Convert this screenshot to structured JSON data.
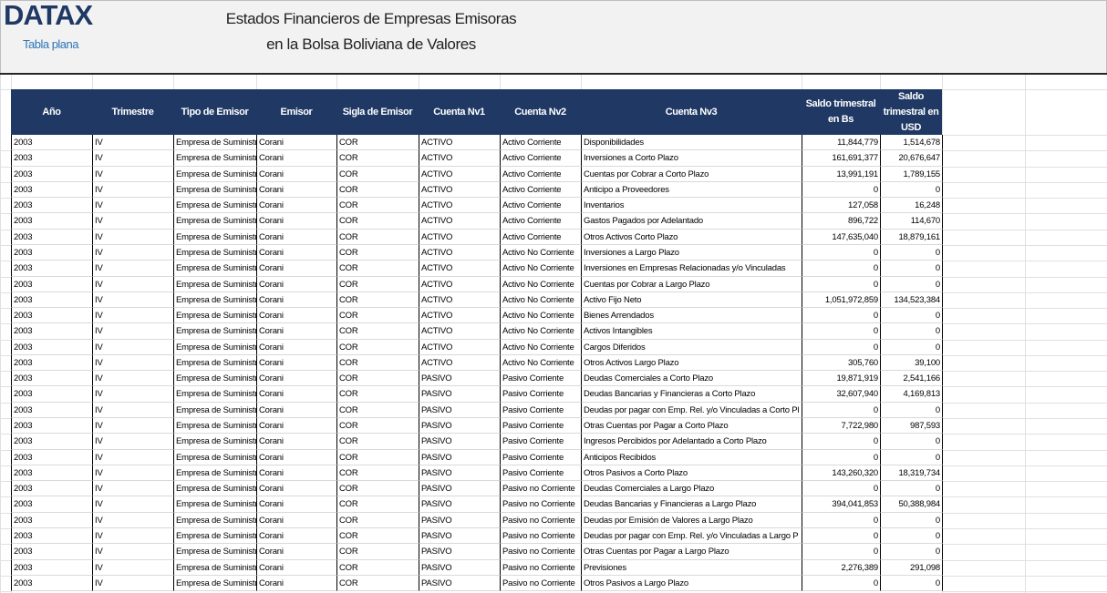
{
  "header": {
    "logo": "DATAX",
    "subtitle": "Tabla plana",
    "title_line1": "Estados Financieros de Empresas Emisoras",
    "title_line2": "en la Bolsa Boliviana de Valores"
  },
  "table": {
    "columns": [
      "Año",
      "Trimestre",
      "Tipo de Emisor",
      "Emisor",
      "Sigla de Emisor",
      "Cuenta Nv1",
      "Cuenta Nv2",
      "Cuenta Nv3",
      "Saldo trimestral en Bs",
      "Saldo trimestral en USD"
    ],
    "rows": [
      [
        "2003",
        "IV",
        "Empresa de Suministr",
        "Corani",
        "COR",
        "ACTIVO",
        "Activo Corriente",
        "Disponibilidades",
        "11,844,779",
        "1,514,678"
      ],
      [
        "2003",
        "IV",
        "Empresa de Suministr",
        "Corani",
        "COR",
        "ACTIVO",
        "Activo Corriente",
        "Inversiones a Corto Plazo",
        "161,691,377",
        "20,676,647"
      ],
      [
        "2003",
        "IV",
        "Empresa de Suministr",
        "Corani",
        "COR",
        "ACTIVO",
        "Activo Corriente",
        "Cuentas por Cobrar a Corto Plazo",
        "13,991,191",
        "1,789,155"
      ],
      [
        "2003",
        "IV",
        "Empresa de Suministr",
        "Corani",
        "COR",
        "ACTIVO",
        "Activo Corriente",
        "Anticipo a Proveedores",
        "0",
        "0"
      ],
      [
        "2003",
        "IV",
        "Empresa de Suministr",
        "Corani",
        "COR",
        "ACTIVO",
        "Activo Corriente",
        "Inventarios",
        "127,058",
        "16,248"
      ],
      [
        "2003",
        "IV",
        "Empresa de Suministr",
        "Corani",
        "COR",
        "ACTIVO",
        "Activo Corriente",
        "Gastos Pagados por Adelantado",
        "896,722",
        "114,670"
      ],
      [
        "2003",
        "IV",
        "Empresa de Suministr",
        "Corani",
        "COR",
        "ACTIVO",
        "Activo Corriente",
        "Otros Activos Corto Plazo",
        "147,635,040",
        "18,879,161"
      ],
      [
        "2003",
        "IV",
        "Empresa de Suministr",
        "Corani",
        "COR",
        "ACTIVO",
        "Activo No Corriente",
        "Inversiones a Largo Plazo",
        "0",
        "0"
      ],
      [
        "2003",
        "IV",
        "Empresa de Suministr",
        "Corani",
        "COR",
        "ACTIVO",
        "Activo No Corriente",
        "Inversiones en Empresas Relacionadas y/o Vinculadas",
        "0",
        "0"
      ],
      [
        "2003",
        "IV",
        "Empresa de Suministr",
        "Corani",
        "COR",
        "ACTIVO",
        "Activo No Corriente",
        "Cuentas por Cobrar a Largo Plazo",
        "0",
        "0"
      ],
      [
        "2003",
        "IV",
        "Empresa de Suministr",
        "Corani",
        "COR",
        "ACTIVO",
        "Activo No Corriente",
        "Activo Fijo Neto",
        "1,051,972,859",
        "134,523,384"
      ],
      [
        "2003",
        "IV",
        "Empresa de Suministr",
        "Corani",
        "COR",
        "ACTIVO",
        "Activo No Corriente",
        "Bienes Arrendados",
        "0",
        "0"
      ],
      [
        "2003",
        "IV",
        "Empresa de Suministr",
        "Corani",
        "COR",
        "ACTIVO",
        "Activo No Corriente",
        "Activos Intangibles",
        "0",
        "0"
      ],
      [
        "2003",
        "IV",
        "Empresa de Suministr",
        "Corani",
        "COR",
        "ACTIVO",
        "Activo No Corriente",
        "Cargos Diferidos",
        "0",
        "0"
      ],
      [
        "2003",
        "IV",
        "Empresa de Suministr",
        "Corani",
        "COR",
        "ACTIVO",
        "Activo No Corriente",
        "Otros Activos Largo Plazo",
        "305,760",
        "39,100"
      ],
      [
        "2003",
        "IV",
        "Empresa de Suministr",
        "Corani",
        "COR",
        "PASIVO",
        "Pasivo Corriente",
        "Deudas Comerciales a Corto Plazo",
        "19,871,919",
        "2,541,166"
      ],
      [
        "2003",
        "IV",
        "Empresa de Suministr",
        "Corani",
        "COR",
        "PASIVO",
        "Pasivo Corriente",
        "Deudas Bancarias y Financieras a Corto Plazo",
        "32,607,940",
        "4,169,813"
      ],
      [
        "2003",
        "IV",
        "Empresa de Suministr",
        "Corani",
        "COR",
        "PASIVO",
        "Pasivo Corriente",
        "Deudas por pagar con Emp. Rel. y/o Vinculadas a Corto Pl",
        "0",
        "0"
      ],
      [
        "2003",
        "IV",
        "Empresa de Suministr",
        "Corani",
        "COR",
        "PASIVO",
        "Pasivo Corriente",
        "Otras Cuentas por Pagar a Corto Plazo",
        "7,722,980",
        "987,593"
      ],
      [
        "2003",
        "IV",
        "Empresa de Suministr",
        "Corani",
        "COR",
        "PASIVO",
        "Pasivo Corriente",
        "Ingresos Percibidos por Adelantado a Corto Plazo",
        "0",
        "0"
      ],
      [
        "2003",
        "IV",
        "Empresa de Suministr",
        "Corani",
        "COR",
        "PASIVO",
        "Pasivo Corriente",
        "Anticipos Recibidos",
        "0",
        "0"
      ],
      [
        "2003",
        "IV",
        "Empresa de Suministr",
        "Corani",
        "COR",
        "PASIVO",
        "Pasivo Corriente",
        "Otros Pasivos a Corto Plazo",
        "143,260,320",
        "18,319,734"
      ],
      [
        "2003",
        "IV",
        "Empresa de Suministr",
        "Corani",
        "COR",
        "PASIVO",
        "Pasivo no Corriente",
        "Deudas Comerciales a Largo Plazo",
        "0",
        "0"
      ],
      [
        "2003",
        "IV",
        "Empresa de Suministr",
        "Corani",
        "COR",
        "PASIVO",
        "Pasivo no Corriente",
        "Deudas Bancarias y Financieras a Largo Plazo",
        "394,041,853",
        "50,388,984"
      ],
      [
        "2003",
        "IV",
        "Empresa de Suministr",
        "Corani",
        "COR",
        "PASIVO",
        "Pasivo no Corriente",
        "Deudas por Emisión de Valores a Largo Plazo",
        "0",
        "0"
      ],
      [
        "2003",
        "IV",
        "Empresa de Suministr",
        "Corani",
        "COR",
        "PASIVO",
        "Pasivo no Corriente",
        "Deudas por pagar con Emp. Rel. y/o Vinculadas a Largo P",
        "0",
        "0"
      ],
      [
        "2003",
        "IV",
        "Empresa de Suministr",
        "Corani",
        "COR",
        "PASIVO",
        "Pasivo no Corriente",
        "Otras Cuentas por Pagar a Largo Plazo",
        "0",
        "0"
      ],
      [
        "2003",
        "IV",
        "Empresa de Suministr",
        "Corani",
        "COR",
        "PASIVO",
        "Pasivo no Corriente",
        "Previsiones",
        "2,276,389",
        "291,098"
      ],
      [
        "2003",
        "IV",
        "Empresa de Suministr",
        "Corani",
        "COR",
        "PASIVO",
        "Pasivo no Corriente",
        "Otros Pasivos a Largo Plazo",
        "0",
        "0"
      ]
    ]
  }
}
